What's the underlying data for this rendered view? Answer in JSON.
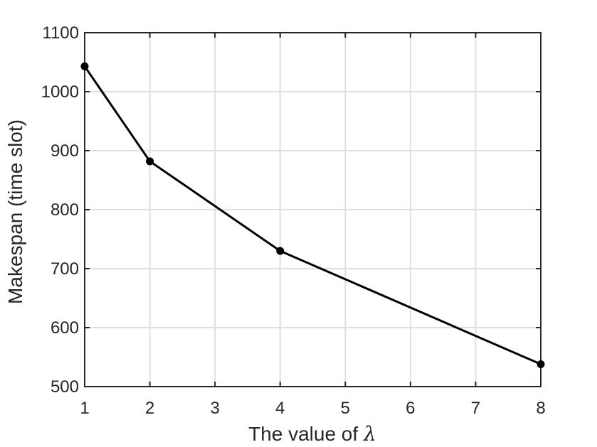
{
  "chart_data": {
    "type": "line",
    "title": "",
    "xlabel": "The value of",
    "xlabel_symbol": "λ",
    "ylabel": "Makespan (time slot)",
    "xlim": [
      1,
      8
    ],
    "ylim": [
      500,
      1100
    ],
    "xticks": [
      1,
      2,
      3,
      4,
      5,
      6,
      7,
      8
    ],
    "yticks": [
      500,
      600,
      700,
      800,
      900,
      1000,
      1100
    ],
    "grid": true,
    "legend": "none",
    "series": [
      {
        "color": "#000000",
        "marker": "circle",
        "points": [
          {
            "x": 1,
            "y": 1043
          },
          {
            "x": 2,
            "y": 882
          },
          {
            "x": 4,
            "y": 730
          },
          {
            "x": 8,
            "y": 538
          }
        ]
      }
    ],
    "colors": {
      "axis": "#262626",
      "grid": "#dfdfdf",
      "line": "#000000"
    }
  }
}
